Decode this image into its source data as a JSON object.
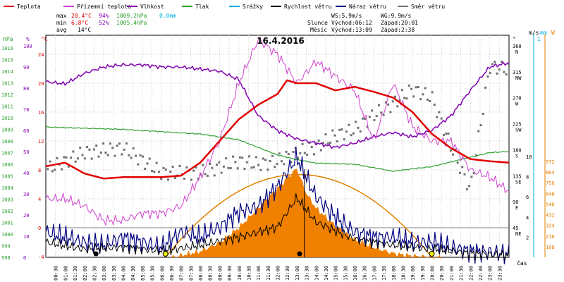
{
  "chart_data": {
    "type": "line",
    "title": "16.4.2016",
    "legend": [
      {
        "label": "Teplota",
        "color": "#e00000"
      },
      {
        "label": "Přízemní teplota",
        "color": "#d040d0"
      },
      {
        "label": "Vlhkost",
        "color": "#8000b0"
      },
      {
        "label": "Tlak",
        "color": "#30a030"
      },
      {
        "label": "Srážky",
        "color": "#00b0e0"
      },
      {
        "label": "Rychlost větru",
        "color": "#000000"
      },
      {
        "label": "Náraz větru",
        "color": "#000080"
      },
      {
        "label": "Směr větru",
        "color": "#707070"
      }
    ],
    "stats": {
      "max": {
        "label": "max",
        "temp": "20.4°C",
        "hum": "94%",
        "press": "1009.2hPa",
        "rain": "0.0mm"
      },
      "min": {
        "label": "min",
        "temp": "6.8°C",
        "hum": "52%",
        "press": "1005.4hPa"
      },
      "avg": {
        "label": "avg",
        "temp": "14°C"
      }
    },
    "wind_info": {
      "ws": "WS:5.9m/s",
      "wg": "WG:9.9m/s"
    },
    "sun": {
      "label": "Slunce",
      "rise": "Východ:06:12",
      "set": "Západ:20:01"
    },
    "moon": {
      "label": "Měsíc",
      "rise": "Východ:13:09",
      "set": "Západ:2:38"
    },
    "axes": {
      "hpa": {
        "unit": "hPa",
        "ticks": [
          "1016",
          "1015",
          "1014",
          "1013",
          "1012",
          "1011",
          "1010",
          "1009",
          "1008",
          "1007",
          "1006",
          "1005",
          "1004",
          "1003",
          "1002",
          "1001",
          "1000",
          "999",
          "998"
        ]
      },
      "pct": {
        "unit": "%",
        "ticks": [
          "100",
          "90",
          "80",
          "70",
          "60",
          "50",
          "40",
          "30",
          "20",
          "10",
          "0"
        ]
      },
      "temp": {
        "unit": "°C",
        "ticks": [
          "24",
          "20",
          "16",
          "12",
          "8",
          "4",
          "0",
          "-4"
        ]
      },
      "deg": {
        "unit": "°",
        "ticks": [
          "360",
          "315",
          "270",
          "225",
          "180",
          "135",
          "90",
          "45"
        ]
      },
      "dir": {
        "ticks": [
          "N",
          "NW",
          "W",
          "SW",
          "S",
          "SE",
          "E",
          "NE"
        ]
      },
      "ms": {
        "unit": "m/s",
        "ticks": [
          "10",
          "8",
          "6",
          "4",
          "2"
        ]
      },
      "mm": {
        "unit": "mm",
        "ticks": [
          "1"
        ]
      },
      "wm2": {
        "unit": "W",
        "ticks": [
          "972",
          "864",
          "756",
          "648",
          "540",
          "432",
          "324",
          "216",
          "108"
        ]
      },
      "time": {
        "label": "čas",
        "ticks": [
          "00:30",
          "01:00",
          "01:30",
          "02:00",
          "02:30",
          "03:00",
          "03:30",
          "04:00",
          "04:30",
          "05:00",
          "05:30",
          "06:00",
          "06:30",
          "07:00",
          "07:30",
          "08:00",
          "08:30",
          "09:00",
          "09:30",
          "10:00",
          "10:30",
          "11:00",
          "11:30",
          "12:00",
          "12:30",
          "13:00",
          "13:30",
          "14:00",
          "14:30",
          "15:00",
          "15:30",
          "16:00",
          "16:30",
          "17:00",
          "17:30",
          "18:00",
          "18:30",
          "19:00",
          "19:30",
          "20:00",
          "20:30",
          "21:00",
          "21:30",
          "22:00",
          "22:30",
          "23:00",
          "23:30"
        ]
      }
    },
    "series": [
      {
        "key": "temperature",
        "axis": "temp",
        "x": [
          0,
          1,
          2,
          3,
          4,
          5,
          6,
          7,
          8,
          9,
          10,
          11,
          12,
          12.5,
          13,
          14,
          15,
          16,
          17,
          18,
          19,
          20,
          21,
          22,
          23,
          24
        ],
        "values": [
          8.5,
          9,
          7.5,
          6.8,
          7,
          7,
          7,
          7.2,
          9,
          12,
          15,
          17,
          18.5,
          20.4,
          20,
          20,
          19,
          19.5,
          18.8,
          18,
          16,
          13,
          11,
          9.5,
          9.2,
          9
        ]
      },
      {
        "key": "ground_temperature",
        "axis": "temp",
        "x": [
          0,
          1,
          2,
          3,
          4,
          5,
          6,
          7,
          8,
          9,
          10,
          11,
          12,
          13,
          14,
          15,
          16,
          17,
          18,
          19,
          20,
          21,
          22,
          23,
          24
        ],
        "values": [
          4,
          4,
          3,
          1,
          1,
          2,
          2,
          3,
          7,
          12,
          20,
          26,
          24,
          20,
          23,
          21,
          19,
          12,
          20,
          14,
          12,
          12,
          8,
          7,
          5
        ]
      },
      {
        "key": "humidity",
        "axis": "pct",
        "x": [
          0,
          1,
          2,
          3,
          4,
          5,
          6,
          7,
          8,
          9,
          10,
          11,
          12,
          13,
          14,
          15,
          16,
          17,
          18,
          19,
          20,
          21,
          22,
          23,
          24
        ],
        "values": [
          83,
          82,
          87,
          90,
          91,
          91,
          90,
          90,
          89,
          88,
          84,
          67,
          60,
          56,
          54,
          52,
          54,
          57,
          59,
          57,
          60,
          67,
          79,
          90,
          92
        ]
      },
      {
        "key": "pressure",
        "axis": "hpa",
        "x": [
          0,
          2,
          4,
          6,
          8,
          10,
          12,
          13,
          14,
          16,
          18,
          20,
          22,
          23,
          24
        ],
        "values": [
          1009.2,
          1009.1,
          1009,
          1008.8,
          1008.6,
          1008.1,
          1006.8,
          1006.4,
          1006.1,
          1006,
          1005.4,
          1005.8,
          1006.6,
          1007,
          1007.1
        ]
      },
      {
        "key": "wind_speed",
        "axis": "ms",
        "x": [
          0,
          2,
          4,
          6,
          8,
          10,
          12,
          13,
          14,
          16,
          18,
          20,
          22,
          23,
          24
        ],
        "values": [
          1.5,
          0.8,
          1,
          0.6,
          1.2,
          2,
          3,
          5.9,
          3.5,
          1.8,
          1.2,
          0.8,
          0.4,
          0.3,
          0.2
        ]
      },
      {
        "key": "wind_gust",
        "axis": "ms",
        "x": [
          0,
          1,
          2,
          3,
          4,
          5,
          6,
          7,
          8,
          9,
          10,
          11,
          12,
          13,
          14,
          15,
          16,
          17,
          18,
          19,
          20,
          21,
          22,
          23,
          24
        ],
        "values": [
          2.5,
          2,
          1.5,
          1.2,
          2,
          1.5,
          1,
          2.5,
          2,
          3,
          4.5,
          5,
          7,
          9.9,
          6,
          4,
          2.5,
          2,
          2,
          1.5,
          1.5,
          1,
          0.6,
          0.5,
          0.3
        ]
      },
      {
        "key": "solar_radiation",
        "axis": "wm2",
        "x": [
          6.5,
          8,
          9,
          10,
          11,
          12,
          13,
          13.5,
          14,
          15,
          16,
          17,
          18,
          19,
          20.5
        ],
        "values": [
          0,
          60,
          150,
          300,
          500,
          700,
          900,
          650,
          500,
          320,
          180,
          100,
          40,
          15,
          0
        ]
      },
      {
        "key": "wind_direction",
        "axis": "deg",
        "x": [
          0,
          2,
          4,
          6,
          8,
          10,
          11,
          12,
          13,
          14,
          15,
          16,
          17,
          18,
          19,
          20,
          21,
          22,
          23,
          24
        ],
        "values": [
          145,
          175,
          183,
          140,
          140,
          160,
          155,
          160,
          175,
          185,
          205,
          215,
          240,
          260,
          285,
          270,
          185,
          110,
          325,
          318
        ]
      }
    ]
  }
}
